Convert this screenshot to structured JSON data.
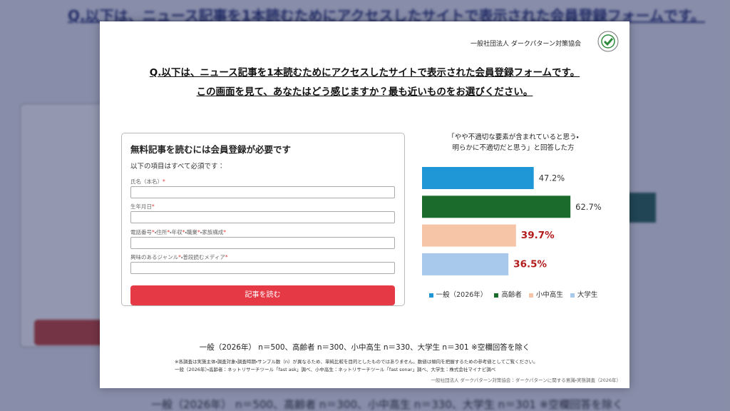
{
  "header": {
    "org": "一般社団法人 ダークパターン対策協会",
    "question": [
      "Q.以下は、ニュース記事を1本読むためにアクセスしたサイトで表示された会員登録フォームです。",
      "この画面を見て、あなたはどう感じますか？最も近いものをお選びください。"
    ]
  },
  "form": {
    "heading": "無料記事を読むには会員登録が必要です",
    "note": "以下の項目はすべて必須です：",
    "fields": [
      "氏名（本名）*",
      "生年月日*",
      "電話番号*・住所*・年収*・職業*・家族構成*",
      "興味のあるジャンル*・普段読むメディア*"
    ],
    "button": "記事を読む"
  },
  "chart_data": {
    "type": "bar",
    "orientation": "horizontal",
    "title": [
      "「やや不適切な要素が含まれていると思う・",
      "明らかに不適切だと思う」と回答した方"
    ],
    "series": [
      {
        "name": "一般（2026年）",
        "color": "#1f97d6",
        "values": [
          47.2
        ],
        "value_labels": [
          "47.2%"
        ],
        "label_color": "#333333",
        "label_bold": false
      },
      {
        "name": "高齢者",
        "color": "#1b6b2c",
        "values": [
          62.7
        ],
        "value_labels": [
          "62.7%"
        ],
        "label_color": "#333333",
        "label_bold": false
      },
      {
        "name": "小中高生",
        "color": "#f6c5a8",
        "values": [
          39.7
        ],
        "value_labels": [
          "39.7%"
        ],
        "label_color": "#b31b1b",
        "label_bold": true
      },
      {
        "name": "大学生",
        "color": "#a8c9ec",
        "values": [
          36.5
        ],
        "value_labels": [
          "36.5%"
        ],
        "label_color": "#b31b1b",
        "label_bold": true
      }
    ],
    "legend": "bottom"
  },
  "sample_note": "一般（2026年） n＝500、高齢者 n＝300、小中高生 n＝330、大学生 n＝301 ※空欄回答を除く",
  "footnotes": [
    "※各調査は実施主体・調査対象・調査時期・サンプル数（n）が異なるため、単純比較を目的としたものではありません。数値は傾向を把握するための参考値としてご覧ください。",
    "一般（2026年）・高齢者：ネットリサーチツール「fast ask」調べ、小中高生：ネットリサーチツール「fast sonar」調べ、大学生：株式会社マイナビ調べ"
  ],
  "source": "一般社団法人 ダークパターン対策協会：ダークパターンに関する意識・実態調査（2026年）"
}
